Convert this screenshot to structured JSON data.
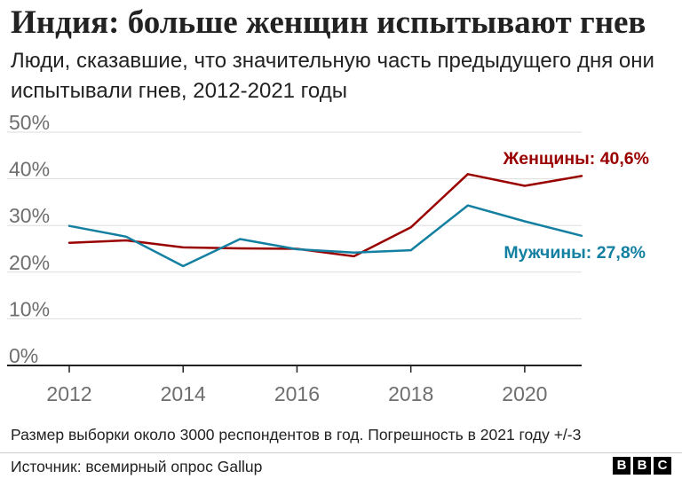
{
  "header": {
    "title": "Индия: больше женщин испытывают гнев",
    "subtitle": "Люди, сказавшие, что значительную часть предыдущего дня они испытывали гнев, 2012-2021 годы"
  },
  "chart_data": {
    "type": "line",
    "x": [
      2012,
      2013,
      2014,
      2015,
      2016,
      2017,
      2018,
      2019,
      2020,
      2021
    ],
    "xticks": [
      "2012",
      "2014",
      "2016",
      "2018",
      "2020"
    ],
    "xtick_values": [
      2012,
      2014,
      2016,
      2018,
      2020
    ],
    "yticks": [
      "0%",
      "10%",
      "20%",
      "30%",
      "40%",
      "50%"
    ],
    "ytick_values": [
      0,
      10,
      20,
      30,
      40,
      50
    ],
    "xlim": [
      2012,
      2021
    ],
    "ylim": [
      0,
      50
    ],
    "grid": true,
    "series": [
      {
        "name": "Женщины",
        "label": "Женщины: 40,6%",
        "color": "#990000",
        "values": [
          26.3,
          26.8,
          25.3,
          25.1,
          25.0,
          23.4,
          29.6,
          41.0,
          38.5,
          40.6
        ]
      },
      {
        "name": "Мужчины",
        "label": "Мужчины: 27,8%",
        "color": "#1380a1",
        "values": [
          29.9,
          27.6,
          21.3,
          27.1,
          24.9,
          24.2,
          24.7,
          34.3,
          30.9,
          27.8
        ]
      }
    ]
  },
  "footer": {
    "note": "Размер выборки около 3000 респондентов в год. Погрешность в 2021 году +/-3",
    "source": "Источник: всемирный опрос Gallup",
    "logo_letters": [
      "B",
      "B",
      "C"
    ]
  }
}
